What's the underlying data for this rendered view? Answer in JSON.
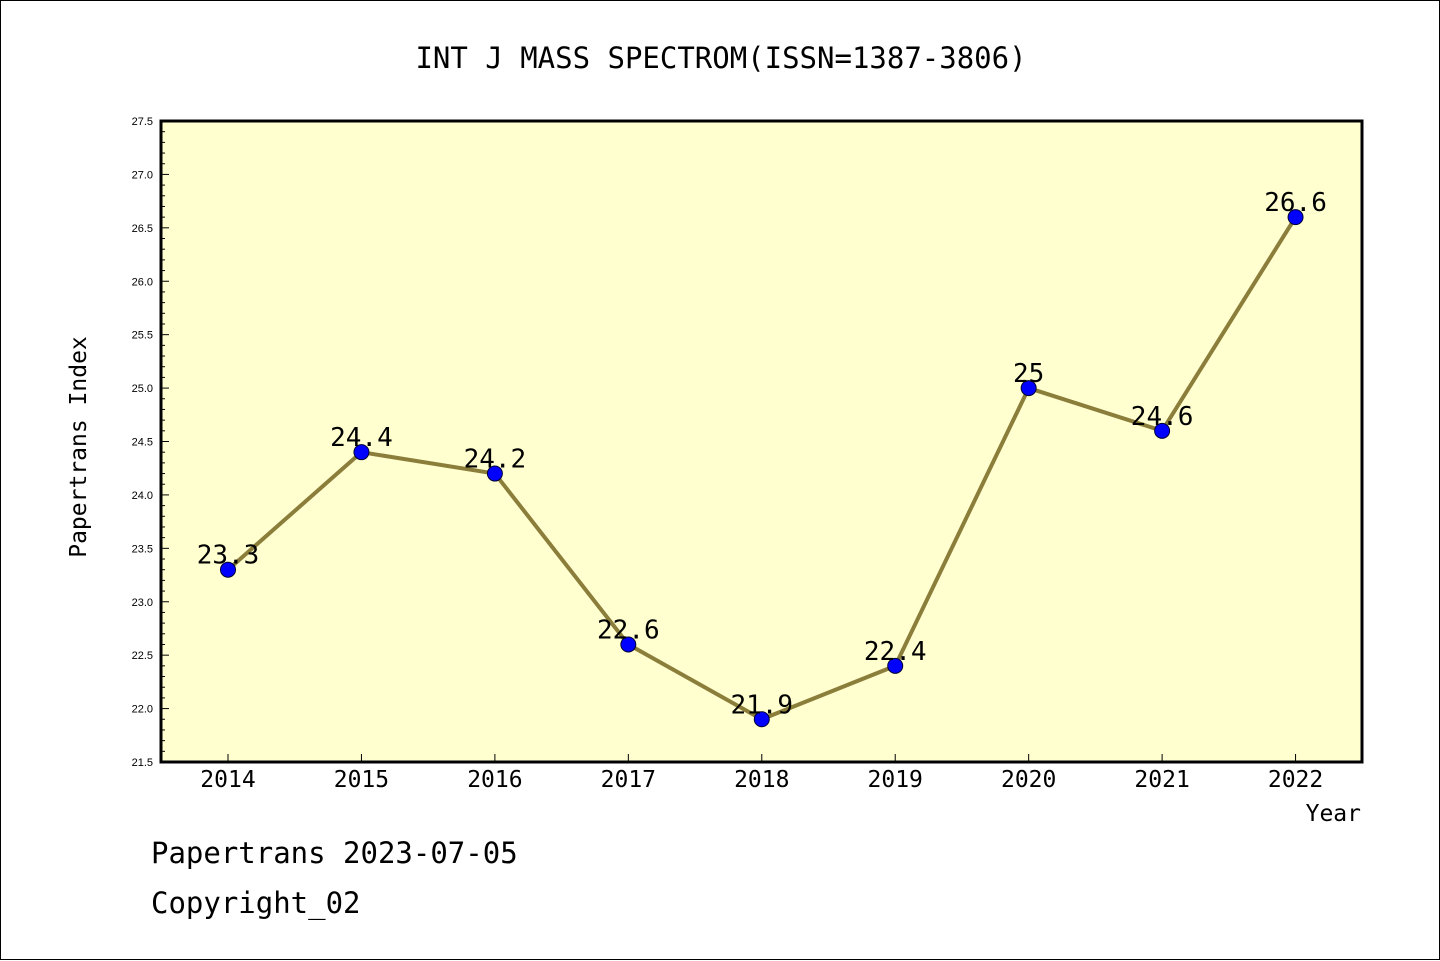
{
  "chart_data": {
    "type": "line",
    "title": "INT J MASS SPECTROM(ISSN=1387-3806)",
    "xlabel": "Year",
    "ylabel": "Papertrans Index",
    "categories": [
      "2014",
      "2015",
      "2016",
      "2017",
      "2018",
      "2019",
      "2020",
      "2021",
      "2022"
    ],
    "series": [
      {
        "values": [
          23.3,
          24.4,
          24.2,
          22.6,
          21.9,
          22.4,
          25.0,
          24.6,
          26.6
        ]
      }
    ],
    "data_labels": [
      "23.3",
      "24.4",
      "24.2",
      "22.6",
      "21.9",
      "22.4",
      "25",
      "24.6",
      "26.6"
    ],
    "ylim": [
      21.5,
      27.5
    ],
    "y_ticks": [
      "21.5",
      "22.0",
      "22.5",
      "23.0",
      "23.5",
      "24.0",
      "24.5",
      "25.0",
      "25.5",
      "26.0",
      "26.5",
      "27.0",
      "27.5"
    ],
    "grid": false,
    "legend": "none",
    "colors": {
      "plot_background": "#FFFFD0",
      "line": "#8B7D3A",
      "marker": "#0000FF"
    }
  },
  "footer": {
    "line1": "Papertrans 2023-07-05",
    "line2": "Copyright_02"
  }
}
